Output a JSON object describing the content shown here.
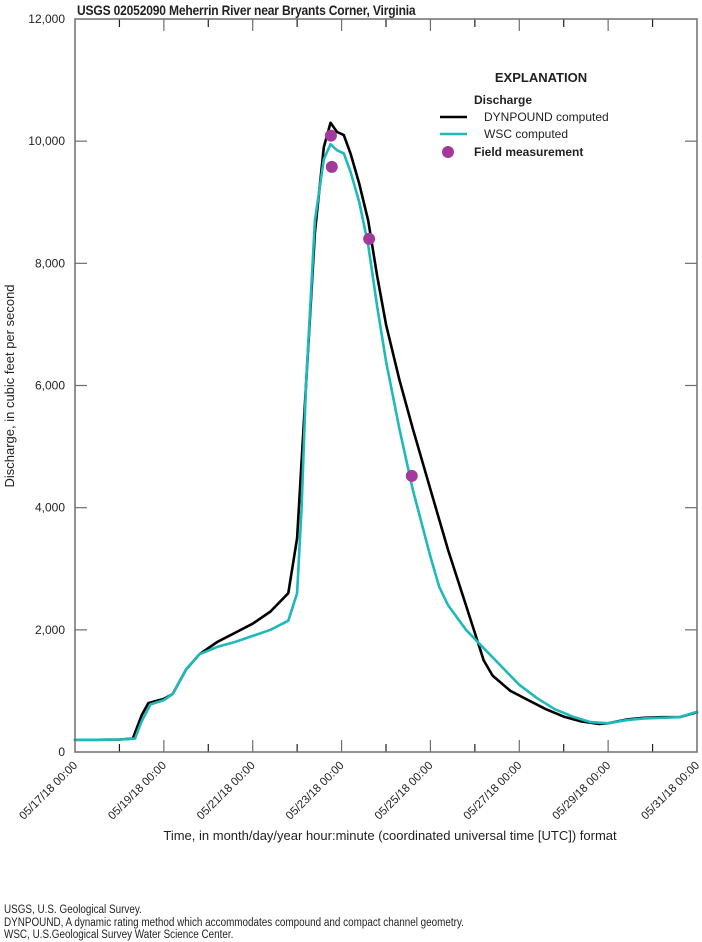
{
  "title": "USGS 02052090 Meherrin River near Bryants Corner, Virginia",
  "y_axis": {
    "label": "Discharge, in cubic feet per second",
    "ticks": [
      "0",
      "2,000",
      "4,000",
      "6,000",
      "8,000",
      "10,000",
      "12,000"
    ]
  },
  "x_axis": {
    "label": "Time, in month/day/year hour:minute (coordinated universal time [UTC]) format",
    "ticks": [
      "05/17/18 00:00",
      "05/19/18 00:00",
      "05/21/18 00:00",
      "05/23/18 00:00",
      "05/25/18 00:00",
      "05/27/18 00:00",
      "05/29/18 00:00",
      "05/31/18 00:00"
    ]
  },
  "legend": {
    "title": "EXPLANATION",
    "group": "Discharge",
    "items": [
      {
        "label": "DYNPOUND computed",
        "type": "line",
        "color": "#000000"
      },
      {
        "label": "WSC computed",
        "type": "line",
        "color": "#1fb8bb"
      },
      {
        "label": "Field measurement",
        "type": "marker",
        "color": "#a3399b"
      }
    ]
  },
  "notes": [
    "USGS, U.S. Geological Survey.",
    "DYNPOUND, A dynamic rating method which accommodates compound and compact channel geometry.",
    "WSC, U.S.Geological Survey Water Science Center."
  ],
  "colors": {
    "dynpound": "#000000",
    "wsc": "#1fb8bb",
    "field": "#a3399b",
    "axis": "#6d6e71"
  },
  "chart_data": {
    "type": "line",
    "title": "USGS 02052090 Meherrin River near Bryants Corner, Virginia",
    "xlabel": "Time, in month/day/year hour:minute (coordinated universal time [UTC]) format",
    "ylabel": "Discharge, in cubic feet per second",
    "x_unit": "days since 05/17/18 00:00",
    "xlim": [
      0,
      14
    ],
    "ylim": [
      0,
      12000
    ],
    "grid": false,
    "legend_position": "upper right",
    "x_tick_positions": [
      0,
      2,
      4,
      6,
      8,
      10,
      12,
      14
    ],
    "y_tick_positions": [
      0,
      2000,
      4000,
      6000,
      8000,
      10000,
      12000
    ],
    "series": [
      {
        "name": "DYNPOUND computed",
        "color": "#000000",
        "x": [
          0,
          0.5,
          1.0,
          1.3,
          1.5,
          1.65,
          1.8,
          2.0,
          2.2,
          2.5,
          2.8,
          3.2,
          3.6,
          4.0,
          4.4,
          4.8,
          5.0,
          5.2,
          5.4,
          5.6,
          5.75,
          5.9,
          6.05,
          6.2,
          6.4,
          6.6,
          6.8,
          7.0,
          7.3,
          7.6,
          8.0,
          8.4,
          8.8,
          9.2,
          9.4,
          9.8,
          10.2,
          10.6,
          11.0,
          11.4,
          11.8,
          12.0,
          12.4,
          12.8,
          13.2,
          13.6,
          14.0
        ],
        "values": [
          200,
          200,
          205,
          220,
          600,
          800,
          830,
          870,
          950,
          1350,
          1600,
          1800,
          1950,
          2100,
          2300,
          2600,
          3500,
          6000,
          8500,
          9900,
          10300,
          10150,
          10100,
          9800,
          9300,
          8700,
          7800,
          7000,
          6100,
          5300,
          4300,
          3300,
          2400,
          1500,
          1250,
          1000,
          850,
          700,
          580,
          500,
          460,
          470,
          530,
          560,
          570,
          570,
          650
        ]
      },
      {
        "name": "WSC computed",
        "color": "#1fb8bb",
        "x": [
          0,
          0.5,
          1.0,
          1.35,
          1.5,
          1.7,
          2.0,
          2.2,
          2.5,
          2.8,
          3.2,
          3.6,
          4.0,
          4.4,
          4.8,
          5.0,
          5.1,
          5.2,
          5.4,
          5.6,
          5.75,
          5.9,
          6.05,
          6.2,
          6.4,
          6.6,
          6.8,
          7.0,
          7.3,
          7.6,
          8.0,
          8.2,
          8.4,
          8.8,
          9.2,
          9.6,
          10.0,
          10.4,
          10.8,
          11.2,
          11.6,
          12.0,
          12.4,
          12.8,
          13.2,
          13.6,
          14.0
        ],
        "values": [
          200,
          200,
          205,
          220,
          500,
          780,
          850,
          950,
          1350,
          1600,
          1720,
          1800,
          1900,
          2000,
          2150,
          2600,
          4000,
          6000,
          8700,
          9700,
          9950,
          9850,
          9800,
          9500,
          9000,
          8300,
          7300,
          6400,
          5300,
          4300,
          3200,
          2700,
          2400,
          2000,
          1700,
          1400,
          1100,
          880,
          700,
          580,
          490,
          470,
          520,
          550,
          560,
          570,
          660
        ]
      },
      {
        "name": "Field measurement",
        "type": "scatter",
        "color": "#a3399b",
        "x": [
          5.76,
          5.78,
          6.62,
          7.58
        ],
        "values": [
          10090,
          9580,
          8400,
          4520
        ]
      }
    ]
  }
}
